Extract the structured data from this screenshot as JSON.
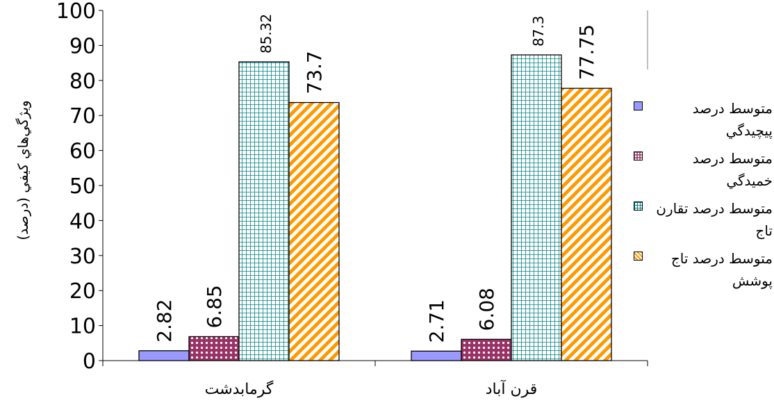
{
  "chart_data": {
    "type": "bar",
    "ylabel": "ويژگي‌هاي كيفي (درصد)",
    "xlabel": "",
    "ylim": [
      0,
      100
    ],
    "yticks": [
      0,
      10,
      20,
      30,
      40,
      50,
      60,
      70,
      80,
      90,
      100
    ],
    "categories": [
      "گرمابدشت",
      "قرن آباد"
    ],
    "legend_position": "right",
    "series": [
      {
        "name": "متوسط درصد پيچيدگي",
        "values": [
          2.82,
          2.71
        ],
        "labels": [
          "2.82",
          "2.71"
        ],
        "color": "#9999ff"
      },
      {
        "name": "متوسط درصد خميدگي",
        "values": [
          6.85,
          6.08
        ],
        "labels": [
          "6.85",
          "6.08"
        ],
        "color": "#993366"
      },
      {
        "name": "متوسط درصد تقارن تاج",
        "values": [
          85.32,
          87.3
        ],
        "labels": [
          "85.32",
          "87.3"
        ],
        "color": "#008080"
      },
      {
        "name": "متوسط درصد تاج پوشش",
        "values": [
          73.7,
          77.75
        ],
        "labels": [
          "73.7",
          "77.75"
        ],
        "color": "#ff9900"
      }
    ]
  }
}
